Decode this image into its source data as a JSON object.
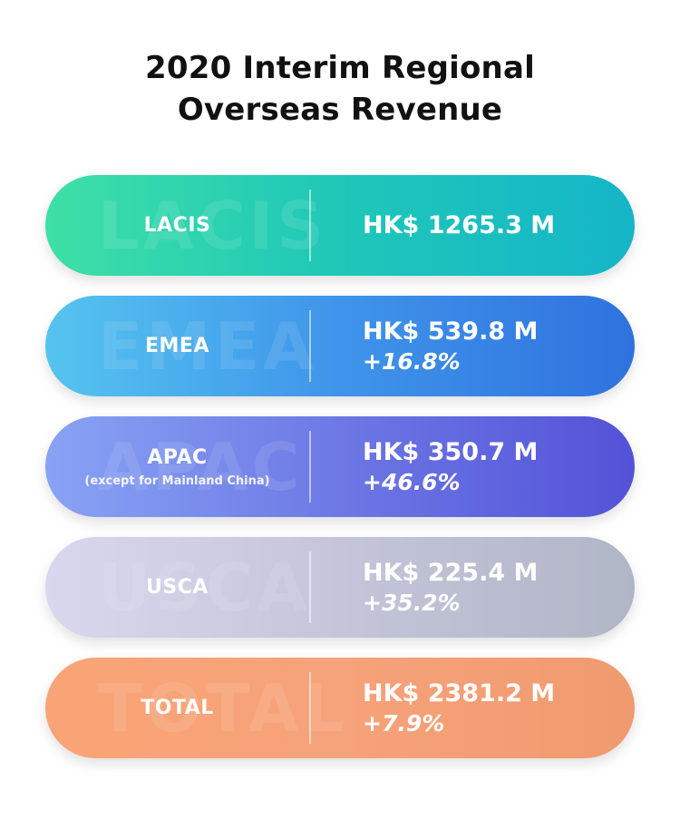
{
  "title": {
    "line1": "2020 Interim Regional",
    "line2": "Overseas Revenue"
  },
  "regions": [
    {
      "name": "LACIS",
      "subtitle": "",
      "amount": "HK$ 1265.3 M",
      "growth": "",
      "colors": [
        "#3ee0a5",
        "#16b5c8"
      ]
    },
    {
      "name": "EMEA",
      "subtitle": "",
      "amount": "HK$ 539.8 M",
      "growth": "+16.8%",
      "colors": [
        "#55c4ef",
        "#2f72de"
      ]
    },
    {
      "name": "APAC",
      "subtitle": "(except for Mainland China)",
      "amount": "HK$ 350.7 M",
      "growth": "+46.6%",
      "colors": [
        "#88a3f4",
        "#5452d8"
      ]
    },
    {
      "name": "USCA",
      "subtitle": "",
      "amount": "HK$ 225.4 M",
      "growth": "+35.2%",
      "colors": [
        "#d9d7ee",
        "#b1b6c6"
      ]
    },
    {
      "name": "TOTAL",
      "subtitle": "",
      "amount": "HK$ 2381.2 M",
      "growth": "+7.9%",
      "colors": [
        "#f9a476",
        "#f09a6f"
      ]
    }
  ]
}
